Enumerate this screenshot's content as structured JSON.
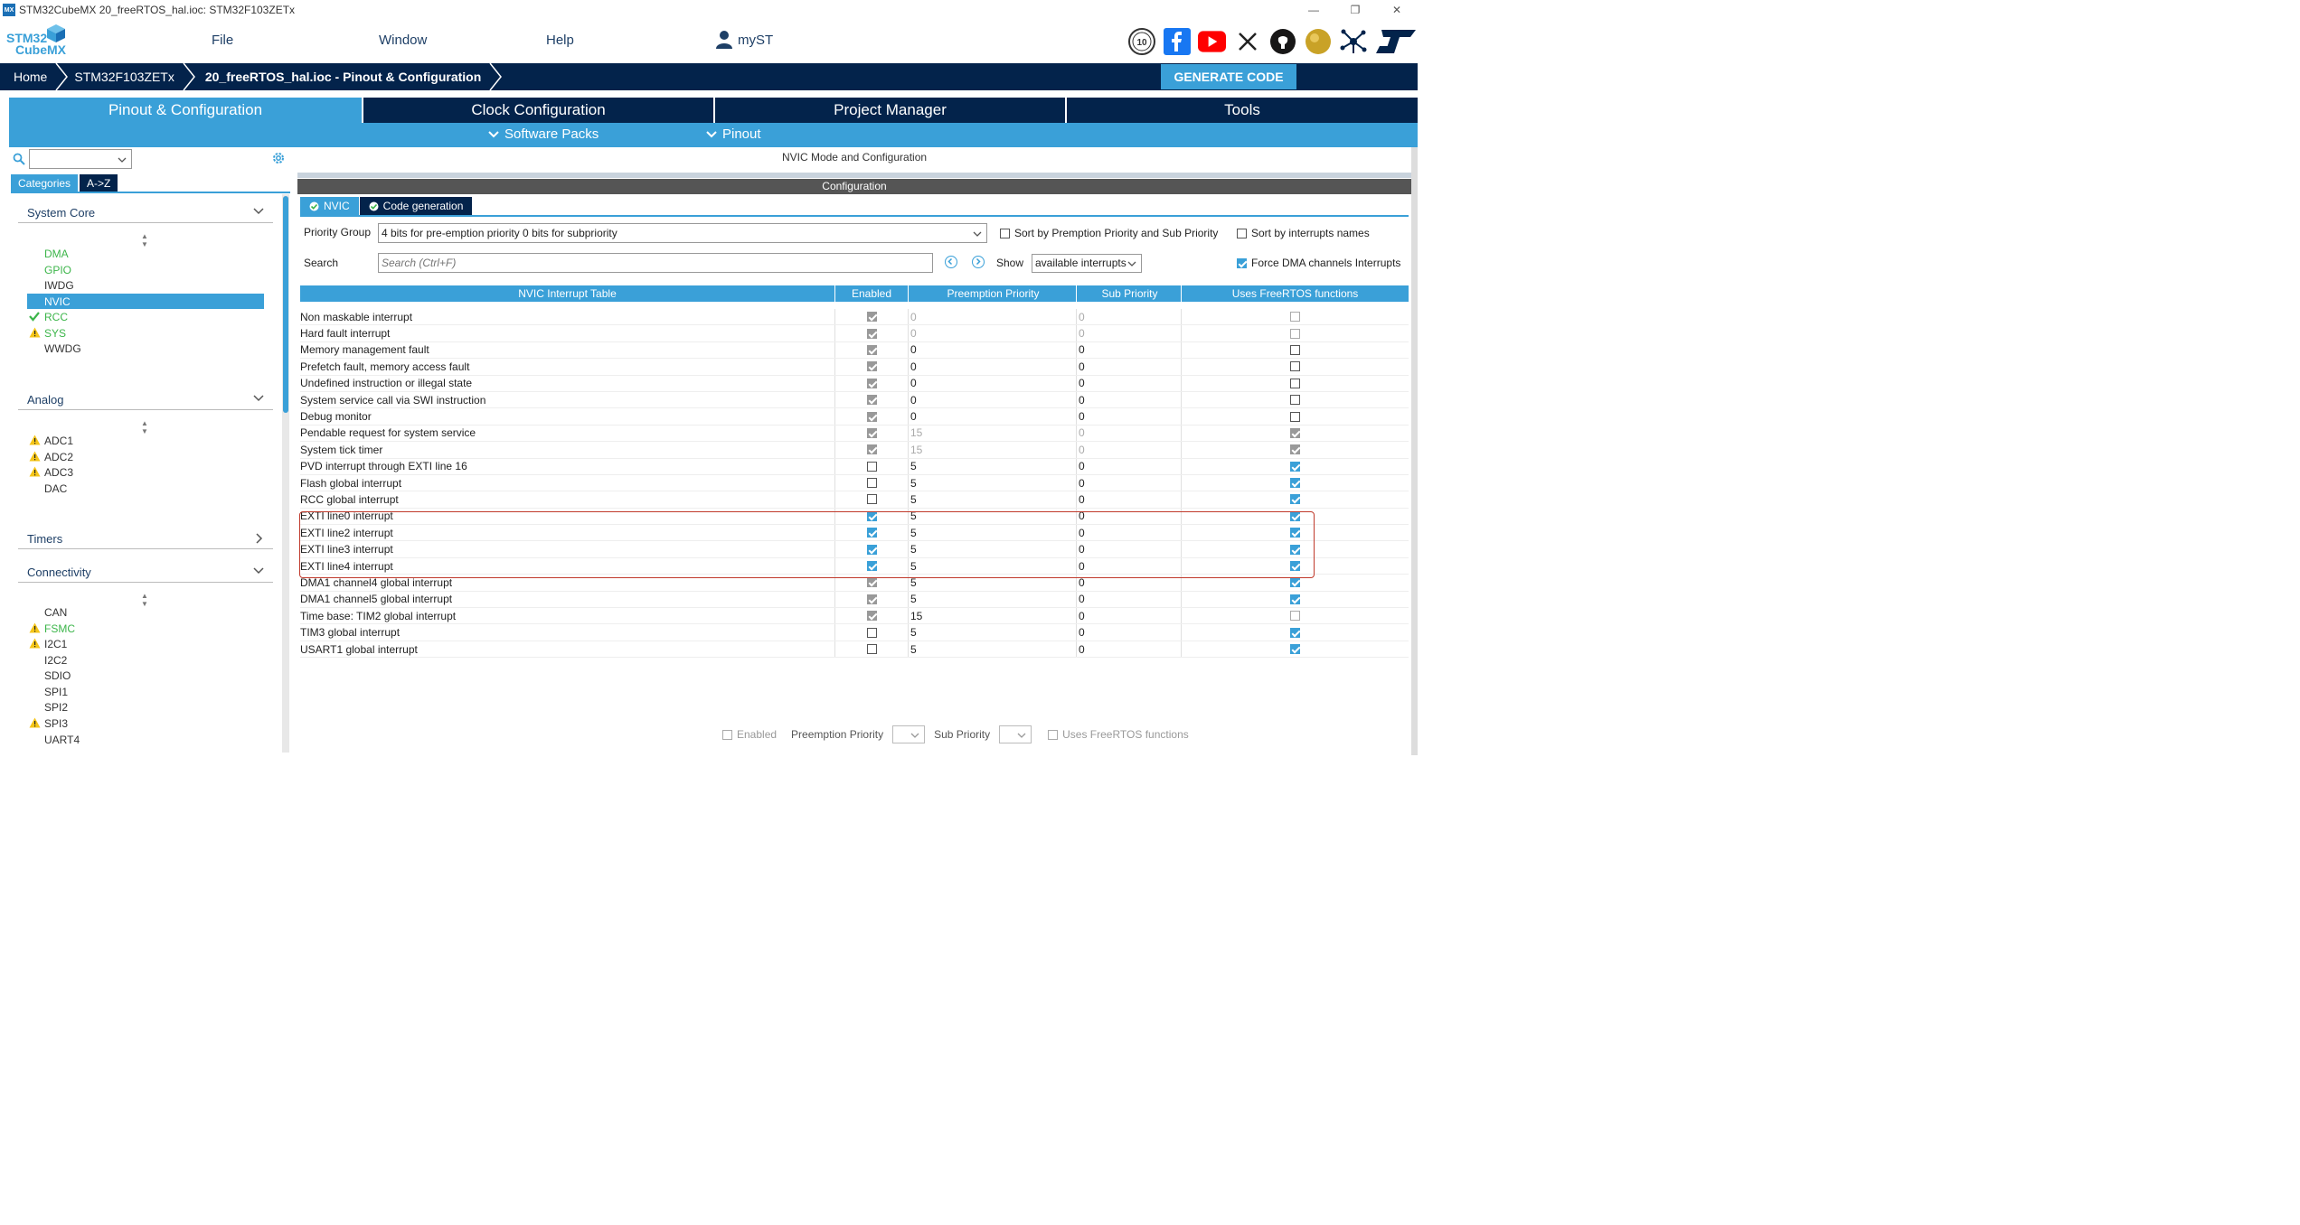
{
  "window": {
    "title": "STM32CubeMX 20_freeRTOS_hal.ioc: STM32F103ZETx",
    "app_badge": "MX"
  },
  "logo": {
    "line1": "STM32",
    "line2": "CubeMX"
  },
  "menu": {
    "file": "File",
    "window": "Window",
    "help": "Help",
    "myst": "myST"
  },
  "social_badge": "10",
  "breadcrumb": {
    "home": "Home",
    "device": "STM32F103ZETx",
    "project": "20_freeRTOS_hal.ioc - Pinout & Configuration"
  },
  "generate_code": "GENERATE CODE",
  "main_tabs": [
    "Pinout & Configuration",
    "Clock Configuration",
    "Project Manager",
    "Tools"
  ],
  "sub_tabs": {
    "software_packs": "Software Packs",
    "pinout": "Pinout"
  },
  "left": {
    "cat_tabs": [
      "Categories",
      "A->Z"
    ],
    "sections": {
      "system_core": "System Core",
      "analog": "Analog",
      "timers": "Timers",
      "connectivity": "Connectivity"
    },
    "system_core_items": [
      "DMA",
      "GPIO",
      "IWDG",
      "NVIC",
      "RCC",
      "SYS",
      "WWDG"
    ],
    "analog_items": [
      "ADC1",
      "ADC2",
      "ADC3",
      "DAC"
    ],
    "connectivity_items": [
      "CAN",
      "FSMC",
      "I2C1",
      "I2C2",
      "SDIO",
      "SPI1",
      "SPI2",
      "SPI3",
      "UART4"
    ]
  },
  "right": {
    "mode_title": "NVIC Mode and Configuration",
    "config_title": "Configuration",
    "tabs": [
      "NVIC",
      "Code generation"
    ],
    "priority_group_label": "Priority Group",
    "priority_group_value": "4 bits for pre-emption priority 0 bits for subpriority",
    "sort_premption": "Sort by Premption Priority and Sub Priority",
    "sort_names": "Sort by interrupts names",
    "search_label": "Search",
    "search_placeholder": "Search (Ctrl+F)",
    "show_label": "Show",
    "show_value": "available interrupts",
    "force_dma": "Force DMA channels Interrupts",
    "table_headers": [
      "NVIC Interrupt Table",
      "Enabled",
      "Preemption Priority",
      "Sub Priority",
      "Uses FreeRTOS functions"
    ],
    "bottom": {
      "enabled": "Enabled",
      "preemption": "Preemption Priority",
      "sub": "Sub Priority",
      "freertos": "Uses FreeRTOS functions"
    }
  },
  "interrupts": [
    {
      "name": "Non maskable interrupt",
      "enabled": true,
      "locked": true,
      "pre": "0",
      "sub": "0",
      "dimval": true,
      "rtos": false,
      "rtos_dim": true
    },
    {
      "name": "Hard fault interrupt",
      "enabled": true,
      "locked": true,
      "pre": "0",
      "sub": "0",
      "dimval": true,
      "rtos": false,
      "rtos_dim": true
    },
    {
      "name": "Memory management fault",
      "enabled": true,
      "locked": true,
      "pre": "0",
      "sub": "0",
      "dimval": false,
      "rtos": false,
      "rtos_dim": false
    },
    {
      "name": "Prefetch fault, memory access fault",
      "enabled": true,
      "locked": true,
      "pre": "0",
      "sub": "0",
      "dimval": false,
      "rtos": false,
      "rtos_dim": false
    },
    {
      "name": "Undefined instruction or illegal state",
      "enabled": true,
      "locked": true,
      "pre": "0",
      "sub": "0",
      "dimval": false,
      "rtos": false,
      "rtos_dim": false
    },
    {
      "name": "System service call via SWI instruction",
      "enabled": true,
      "locked": true,
      "pre": "0",
      "sub": "0",
      "dimval": false,
      "rtos": false,
      "rtos_dim": false
    },
    {
      "name": "Debug monitor",
      "enabled": true,
      "locked": true,
      "pre": "0",
      "sub": "0",
      "dimval": false,
      "rtos": false,
      "rtos_dim": false
    },
    {
      "name": "Pendable request for system service",
      "enabled": true,
      "locked": true,
      "pre": "15",
      "sub": "0",
      "dimval": true,
      "rtos": true,
      "rtos_dim": true
    },
    {
      "name": "System tick timer",
      "enabled": true,
      "locked": true,
      "pre": "15",
      "sub": "0",
      "dimval": true,
      "rtos": true,
      "rtos_dim": true
    },
    {
      "name": "PVD interrupt through EXTI line 16",
      "enabled": false,
      "locked": false,
      "pre": "5",
      "sub": "0",
      "dimval": false,
      "rtos": true,
      "rtos_dim": false
    },
    {
      "name": "Flash global interrupt",
      "enabled": false,
      "locked": false,
      "pre": "5",
      "sub": "0",
      "dimval": false,
      "rtos": true,
      "rtos_dim": false
    },
    {
      "name": "RCC global interrupt",
      "enabled": false,
      "locked": false,
      "pre": "5",
      "sub": "0",
      "dimval": false,
      "rtos": true,
      "rtos_dim": false
    },
    {
      "name": "EXTI line0 interrupt",
      "enabled": true,
      "locked": false,
      "pre": "5",
      "sub": "0",
      "dimval": false,
      "rtos": true,
      "rtos_dim": false
    },
    {
      "name": "EXTI line2 interrupt",
      "enabled": true,
      "locked": false,
      "pre": "5",
      "sub": "0",
      "dimval": false,
      "rtos": true,
      "rtos_dim": false
    },
    {
      "name": "EXTI line3 interrupt",
      "enabled": true,
      "locked": false,
      "pre": "5",
      "sub": "0",
      "dimval": false,
      "rtos": true,
      "rtos_dim": false
    },
    {
      "name": "EXTI line4 interrupt",
      "enabled": true,
      "locked": false,
      "pre": "5",
      "sub": "0",
      "dimval": false,
      "rtos": true,
      "rtos_dim": false
    },
    {
      "name": "DMA1 channel4 global interrupt",
      "enabled": true,
      "locked": true,
      "pre": "5",
      "sub": "0",
      "dimval": false,
      "rtos": true,
      "rtos_dim": false
    },
    {
      "name": "DMA1 channel5 global interrupt",
      "enabled": true,
      "locked": true,
      "pre": "5",
      "sub": "0",
      "dimval": false,
      "rtos": true,
      "rtos_dim": false
    },
    {
      "name": "Time base: TIM2 global interrupt",
      "enabled": true,
      "locked": true,
      "pre": "15",
      "sub": "0",
      "dimval": false,
      "rtos": false,
      "rtos_dim": true
    },
    {
      "name": "TIM3 global interrupt",
      "enabled": false,
      "locked": false,
      "pre": "5",
      "sub": "0",
      "dimval": false,
      "rtos": true,
      "rtos_dim": false
    },
    {
      "name": "USART1 global interrupt",
      "enabled": false,
      "locked": false,
      "pre": "5",
      "sub": "0",
      "dimval": false,
      "rtos": true,
      "rtos_dim": false
    }
  ],
  "colors": {
    "dark_navy": "#03234b",
    "accent_blue": "#3aa0d8",
    "ok_green": "#3cb54a",
    "warn_yellow": "#f5c518",
    "highlight_red": "#c0392b"
  }
}
